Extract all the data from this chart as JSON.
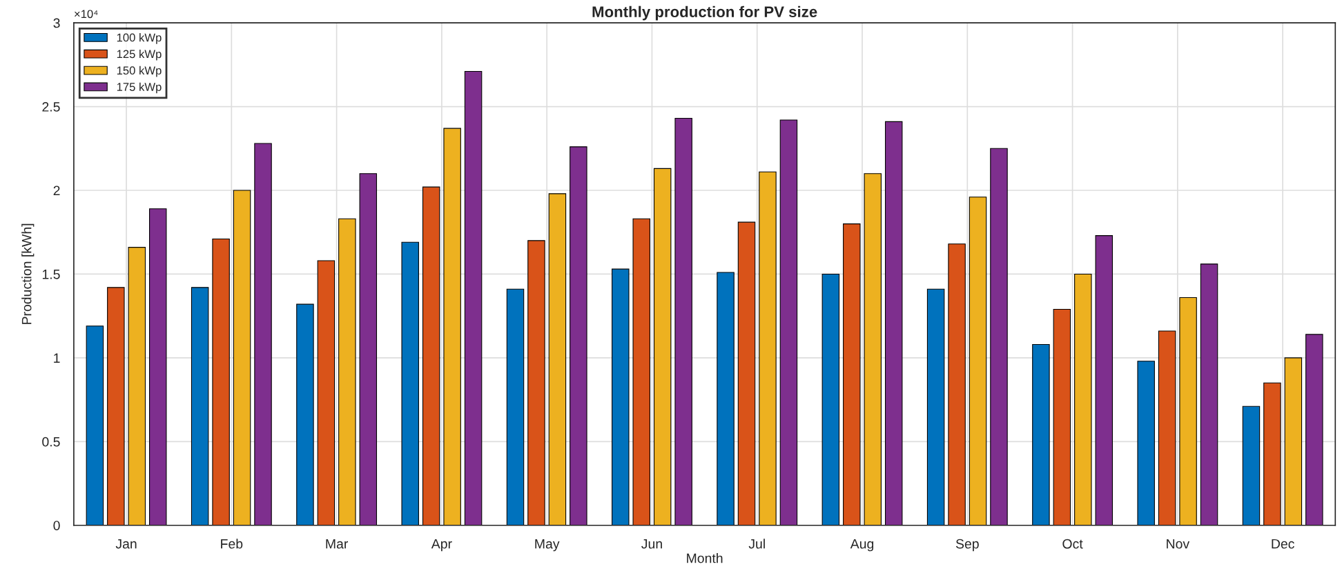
{
  "chart_data": {
    "type": "bar",
    "title": "Monthly production for PV size",
    "xlabel": "Month",
    "ylabel": "Production [kWh]",
    "categories": [
      "Jan",
      "Feb",
      "Mar",
      "Apr",
      "May",
      "Jun",
      "Jul",
      "Aug",
      "Sep",
      "Oct",
      "Nov",
      "Dec"
    ],
    "series": [
      {
        "name": "100 kWp",
        "color": "#0072bd",
        "values": [
          1.19,
          1.42,
          1.32,
          1.69,
          1.41,
          1.53,
          1.51,
          1.5,
          1.41,
          1.08,
          0.98,
          0.71
        ]
      },
      {
        "name": "125 kWp",
        "color": "#d95319",
        "values": [
          1.42,
          1.71,
          1.58,
          2.02,
          1.7,
          1.83,
          1.81,
          1.8,
          1.68,
          1.29,
          1.16,
          0.85
        ]
      },
      {
        "name": "150 kWp",
        "color": "#edb120",
        "values": [
          1.66,
          2.0,
          1.83,
          2.37,
          1.98,
          2.13,
          2.11,
          2.1,
          1.96,
          1.5,
          1.36,
          1.0
        ]
      },
      {
        "name": "175 kWp",
        "color": "#7e2f8e",
        "values": [
          1.89,
          2.28,
          2.1,
          2.71,
          2.26,
          2.43,
          2.42,
          2.41,
          2.25,
          1.73,
          1.56,
          1.14
        ]
      }
    ],
    "ylim": [
      0,
      3
    ],
    "yticks": [
      0,
      0.5,
      1,
      1.5,
      2,
      2.5,
      3
    ],
    "annotations": [
      "×10⁴"
    ],
    "grid": true,
    "legend": "top left"
  }
}
